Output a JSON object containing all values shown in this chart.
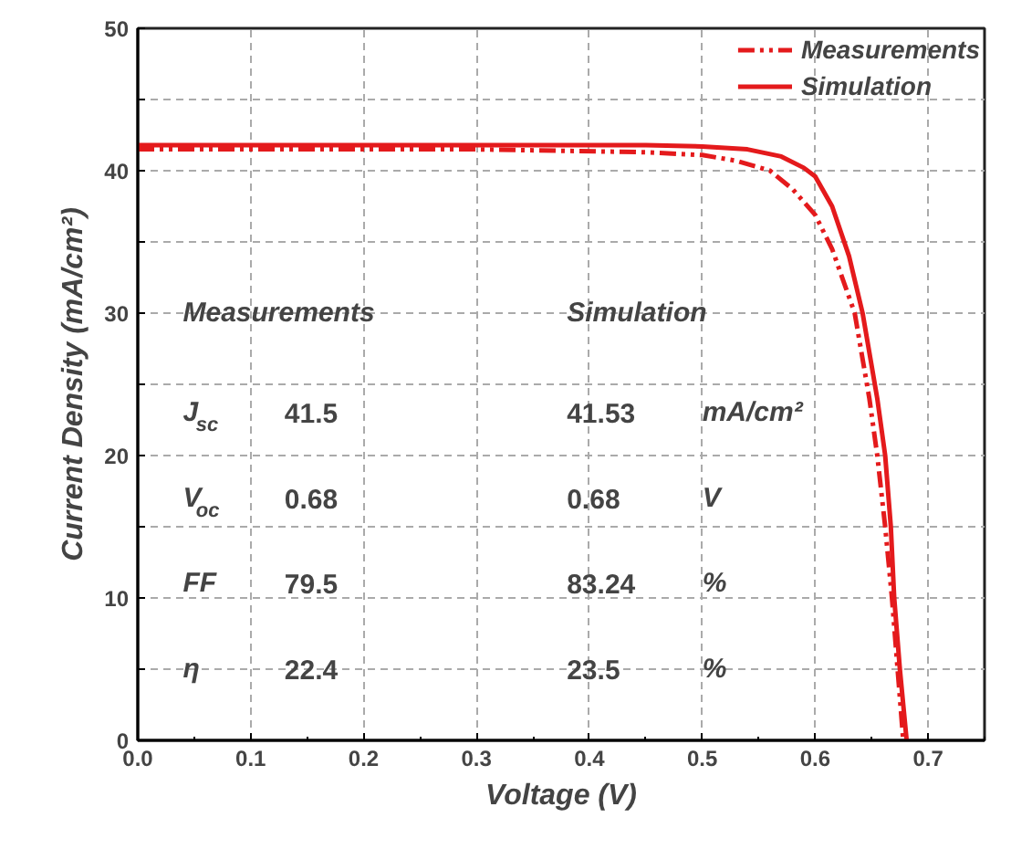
{
  "chart_data": {
    "type": "line",
    "xlabel": "Voltage (V)",
    "ylabel": "Current Density (mA/cm²)",
    "xlim": [
      0,
      0.75
    ],
    "xticks": [
      {
        "value": 0,
        "label": "0.0"
      },
      0.1,
      0.2,
      0.3,
      0.4,
      0.5,
      0.6,
      0.7
    ],
    "ylim": [
      0,
      50
    ],
    "yticks": [
      0,
      {
        "value": 5,
        "label": null
      },
      10,
      {
        "value": 15,
        "label": null
      },
      20,
      {
        "value": 25,
        "label": null
      },
      30,
      {
        "value": 35,
        "label": null
      },
      40,
      {
        "value": 45,
        "label": null
      },
      50
    ],
    "grid": true,
    "legend": "top right",
    "series": [
      {
        "name": "Measurements",
        "color": "#e41a1c",
        "line_style": "dashed",
        "x": [
          0,
          0.3,
          0.45,
          0.5,
          0.53,
          0.56,
          0.58,
          0.6,
          0.615,
          0.635,
          0.648,
          0.655,
          0.662,
          0.668,
          0.673,
          0.678
        ],
        "values": [
          41.5,
          41.5,
          41.3,
          41.1,
          40.7,
          40.0,
          38.7,
          36.9,
          34.5,
          30,
          24,
          20,
          15,
          10,
          5,
          0
        ]
      },
      {
        "name": "Simulation",
        "color": "#e41a1c",
        "line_style": "solid",
        "x": [
          0,
          0.3,
          0.45,
          0.5,
          0.54,
          0.57,
          0.59,
          0.6,
          0.615,
          0.63,
          0.642,
          0.655,
          0.662,
          0.667,
          0.67,
          0.675,
          0.681
        ],
        "values": [
          41.8,
          41.8,
          41.8,
          41.7,
          41.5,
          41.0,
          40.2,
          39.6,
          37.5,
          34,
          30,
          24,
          20,
          15,
          10,
          5,
          0
        ]
      }
    ],
    "annotations": [
      "Measurements",
      "Simulation",
      "J$_{sc}$",
      "41.5",
      "41.53",
      "mA/cm²",
      "V$_{oc}$",
      "0.68",
      "0.68",
      "V",
      "FF",
      "79.5",
      "83.24",
      "%",
      "η",
      "22.4",
      "23.5",
      "%"
    ]
  }
}
